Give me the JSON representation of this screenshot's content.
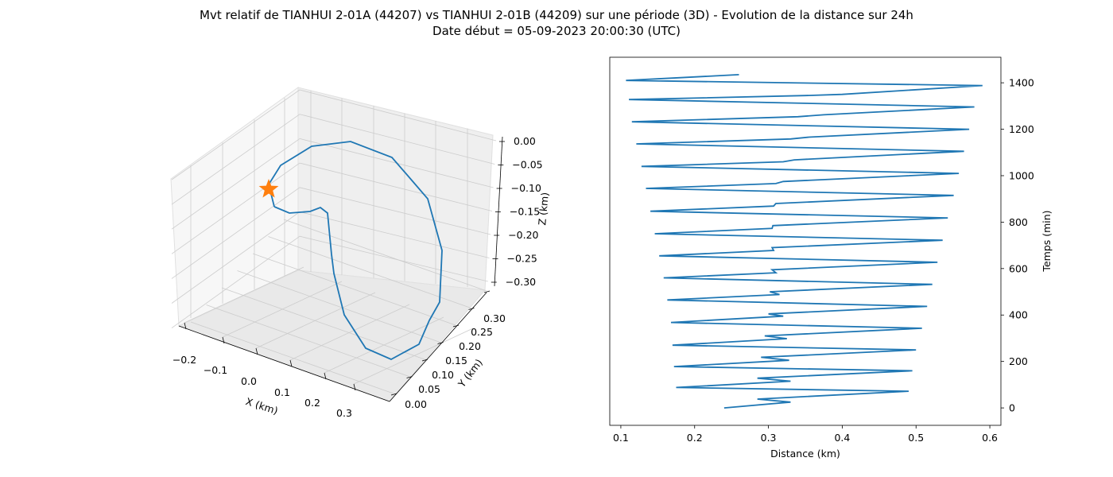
{
  "figure": {
    "title_line1": "Mvt relatif de TIANHUI 2-01A (44207) vs TIANHUI 2-01B (44209) sur une période (3D) - Evolution de la distance sur 24h",
    "title_line2": "Date début = 05-09-2023 20:00:30 (UTC)"
  },
  "colors": {
    "line": "#1f77b4",
    "marker": "#ff7f0e",
    "pane": "#f2f2f2",
    "grid": "#cccccc"
  },
  "chart_data": [
    {
      "type": "line3d",
      "xlabel": "X (km)",
      "ylabel": "Y (km)",
      "zlabel": "Z (km)",
      "xticks": [
        "−0.2",
        "−0.1",
        "0.0",
        "0.1",
        "0.2",
        "0.3"
      ],
      "yticks": [
        "0.00",
        "0.05",
        "0.10",
        "0.15",
        "0.20",
        "0.25",
        "0.30"
      ],
      "zticks": [
        "0.00",
        "−0.05",
        "−0.10",
        "−0.15",
        "−0.20",
        "−0.25",
        "−0.30"
      ],
      "marker": {
        "symbol": "star",
        "label": "start"
      },
      "orbit_approx": {
        "note_only": false
      }
    },
    {
      "type": "line",
      "xlabel": "Distance (km)",
      "ylabel": "Temps (min)",
      "xlim": [
        0.085,
        0.615
      ],
      "ylim": [
        -75,
        1510
      ],
      "xticks": [
        "0.1",
        "0.2",
        "0.3",
        "0.4",
        "0.5",
        "0.6"
      ],
      "yticks": [
        "0",
        "200",
        "400",
        "600",
        "800",
        "1000",
        "1200",
        "1400"
      ],
      "x": [
        0.24,
        0.33,
        0.285,
        0.49,
        0.175,
        0.33,
        0.285,
        0.495,
        0.172,
        0.328,
        0.29,
        0.5,
        0.17,
        0.325,
        0.295,
        0.508,
        0.168,
        0.32,
        0.3,
        0.515,
        0.163,
        0.315,
        0.302,
        0.522,
        0.158,
        0.31,
        0.305,
        0.529,
        0.152,
        0.307,
        0.305,
        0.536,
        0.146,
        0.305,
        0.306,
        0.543,
        0.14,
        0.307,
        0.31,
        0.551,
        0.134,
        0.31,
        0.32,
        0.558,
        0.128,
        0.32,
        0.335,
        0.565,
        0.121,
        0.33,
        0.355,
        0.572,
        0.115,
        0.34,
        0.375,
        0.579,
        0.111,
        0.35,
        0.4,
        0.59,
        0.107,
        0.26
      ],
      "y": [
        0,
        25,
        38,
        72,
        88,
        115,
        128,
        160,
        178,
        205,
        218,
        250,
        270,
        298,
        310,
        343,
        368,
        395,
        405,
        437,
        465,
        488,
        500,
        532,
        560,
        582,
        595,
        627,
        655,
        678,
        690,
        722,
        750,
        773,
        785,
        818,
        847,
        869,
        880,
        915,
        945,
        966,
        975,
        1010,
        1040,
        1060,
        1068,
        1105,
        1137,
        1158,
        1166,
        1200,
        1232,
        1254,
        1262,
        1296,
        1328,
        1345,
        1350,
        1388,
        1410,
        1435
      ]
    }
  ]
}
